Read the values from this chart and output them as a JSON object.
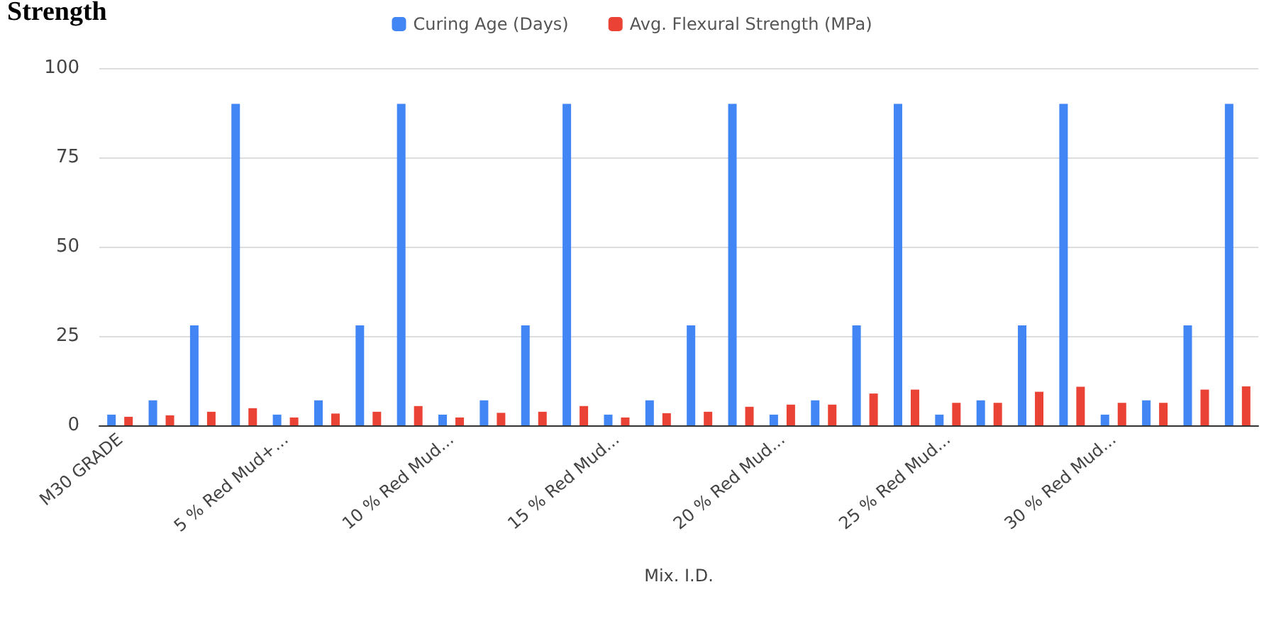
{
  "chart_data": {
    "type": "bar",
    "title": "Strength",
    "xlabel": "Mix. I.D.",
    "categories": [
      "M30 GRADE",
      null,
      null,
      null,
      "5 % Red Mud+...",
      null,
      null,
      null,
      "10 % Red Mud...",
      null,
      null,
      null,
      "15 % Red Mud...",
      null,
      null,
      null,
      "20 % Red Mud...",
      null,
      null,
      null,
      "25 % Red Mud...",
      null,
      null,
      null,
      "30 % Red Mud...",
      null,
      null,
      null
    ],
    "series": [
      {
        "name": "Curing Age (Days)",
        "color": "#4285f4",
        "values": [
          3,
          7,
          28,
          90,
          3,
          7,
          28,
          90,
          3,
          7,
          28,
          90,
          3,
          7,
          28,
          90,
          3,
          7,
          28,
          90,
          3,
          7,
          28,
          90,
          3,
          7,
          28,
          90
        ]
      },
      {
        "name": "Avg. Flexural Strength (MPa)",
        "color": "#ea4335",
        "values": [
          2.4,
          2.8,
          3.8,
          4.8,
          2.2,
          3.3,
          3.8,
          5.4,
          2.2,
          3.5,
          3.8,
          5.4,
          2.2,
          3.4,
          3.8,
          5.2,
          5.8,
          5.8,
          8.9,
          10,
          6.3,
          6.3,
          9.4,
          10.8,
          6.3,
          6.3,
          10,
          10.9
        ]
      }
    ],
    "ylim": [
      0,
      100
    ],
    "yticks": [
      0,
      25,
      50,
      75,
      100
    ],
    "grid": "y",
    "legend": "top"
  }
}
